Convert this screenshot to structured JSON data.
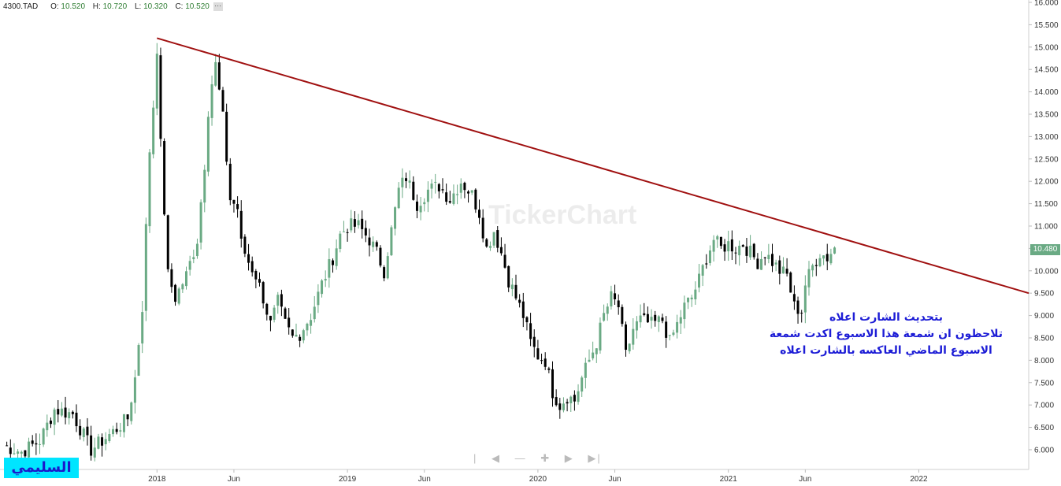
{
  "header": {
    "symbol": "4300.TAD",
    "open_label": "O:",
    "open": "10.520",
    "high_label": "H:",
    "high": "10.720",
    "low_label": "L:",
    "low": "10.320",
    "close_label": "C:",
    "close": "10.520"
  },
  "last_price": "10.480",
  "annotation": [
    "بتحديث الشارت اعلاه",
    "تلاحظون ان شمعة هذا الاسبوع اكدت شمعة",
    "الاسبوع الماضي العاكسه بالشارت اعلاه"
  ],
  "brand_label": "السليمي",
  "watermark": "TickerChart",
  "colors": {
    "up": "#6aaa84",
    "down": "#000000",
    "trendline": "#a01010",
    "annotation": "#1d1dd6",
    "brand_bg": "#00e5ff"
  },
  "navigation_icons": [
    "separator-icon",
    "left-arrow-icon",
    "zoom-out-icon",
    "zoom-in-icon",
    "right-arrow-icon",
    "end-icon"
  ],
  "chart_data": {
    "type": "candlestick",
    "interval": "weekly",
    "ylim": [
      5.7,
      16.0
    ],
    "y_ticks": [
      "6.000",
      "6.500",
      "7.000",
      "7.500",
      "8.000",
      "8.500",
      "9.000",
      "9.500",
      "10.000",
      "10.500",
      "11.000",
      "11.500",
      "12.000",
      "12.500",
      "13.000",
      "13.500",
      "14.000",
      "14.500",
      "15.000",
      "15.500",
      "16.000"
    ],
    "x_ticks": [
      {
        "label": "2018",
        "week": 42
      },
      {
        "label": "Jun",
        "week": 63
      },
      {
        "label": "2019",
        "week": 94
      },
      {
        "label": "Jun",
        "week": 115
      },
      {
        "label": "2020",
        "week": 146
      },
      {
        "label": "Jun",
        "week": 167
      },
      {
        "label": "2021",
        "week": 198
      },
      {
        "label": "Jun",
        "week": 219
      },
      {
        "label": "2022",
        "week": 250
      }
    ],
    "x_range_weeks": [
      0,
      280
    ],
    "close_points": [
      [
        0,
        6.1
      ],
      [
        5,
        5.95
      ],
      [
        10,
        6.2
      ],
      [
        14,
        6.9
      ],
      [
        19,
        6.8
      ],
      [
        24,
        6.0
      ],
      [
        30,
        6.4
      ],
      [
        34,
        6.7
      ],
      [
        36,
        7.6
      ],
      [
        38,
        9.2
      ],
      [
        40,
        12.7
      ],
      [
        41,
        13.7
      ],
      [
        42,
        15.0
      ],
      [
        43,
        12.8
      ],
      [
        45,
        9.9
      ],
      [
        47,
        9.4
      ],
      [
        50,
        9.9
      ],
      [
        53,
        10.7
      ],
      [
        55,
        12.4
      ],
      [
        56,
        13.6
      ],
      [
        57,
        14.2
      ],
      [
        58,
        14.6
      ],
      [
        60,
        13.4
      ],
      [
        62,
        11.6
      ],
      [
        64,
        11.4
      ],
      [
        65,
        10.6
      ],
      [
        67,
        10.2
      ],
      [
        69,
        9.9
      ],
      [
        71,
        9.4
      ],
      [
        73,
        8.8
      ],
      [
        75,
        9.3
      ],
      [
        77,
        8.8
      ],
      [
        79,
        8.5
      ],
      [
        81,
        8.6
      ],
      [
        84,
        9.0
      ],
      [
        87,
        9.7
      ],
      [
        90,
        10.3
      ],
      [
        92,
        10.8
      ],
      [
        94,
        11.0
      ],
      [
        97,
        11.0
      ],
      [
        100,
        10.7
      ],
      [
        102,
        10.4
      ],
      [
        104,
        10.0
      ],
      [
        106,
        10.9
      ],
      [
        108,
        11.8
      ],
      [
        110,
        12.1
      ],
      [
        113,
        11.5
      ],
      [
        116,
        11.8
      ],
      [
        119,
        11.9
      ],
      [
        122,
        11.6
      ],
      [
        125,
        12.0
      ],
      [
        128,
        11.7
      ],
      [
        130,
        11.3
      ],
      [
        132,
        10.5
      ],
      [
        134,
        10.9
      ],
      [
        136,
        10.4
      ],
      [
        138,
        9.8
      ],
      [
        140,
        9.4
      ],
      [
        142,
        9.0
      ],
      [
        144,
        8.4
      ],
      [
        146,
        8.1
      ],
      [
        148,
        8.0
      ],
      [
        150,
        7.3
      ],
      [
        152,
        7.0
      ],
      [
        154,
        7.2
      ],
      [
        156,
        7.1
      ],
      [
        158,
        7.6
      ],
      [
        160,
        8.0
      ],
      [
        162,
        8.4
      ],
      [
        164,
        9.0
      ],
      [
        166,
        9.4
      ],
      [
        168,
        9.2
      ],
      [
        170,
        8.1
      ],
      [
        172,
        8.7
      ],
      [
        174,
        8.9
      ],
      [
        177,
        8.8
      ],
      [
        180,
        8.9
      ],
      [
        182,
        8.4
      ],
      [
        184,
        8.8
      ],
      [
        186,
        9.2
      ],
      [
        188,
        9.4
      ],
      [
        190,
        9.8
      ],
      [
        192,
        10.3
      ],
      [
        194,
        10.7
      ],
      [
        196,
        10.5
      ],
      [
        198,
        10.6
      ],
      [
        200,
        10.5
      ],
      [
        202,
        10.6
      ],
      [
        204,
        10.4
      ],
      [
        206,
        10.2
      ],
      [
        208,
        10.4
      ],
      [
        210,
        10.2
      ],
      [
        212,
        10.0
      ],
      [
        214,
        9.9
      ],
      [
        216,
        9.2
      ],
      [
        218,
        9.1
      ],
      [
        219,
        9.7
      ],
      [
        221,
        10.1
      ],
      [
        223,
        10.4
      ],
      [
        225,
        10.3
      ],
      [
        227,
        10.52
      ]
    ],
    "trendline": {
      "start": {
        "week": 42,
        "value": 15.2
      },
      "end": {
        "week": 280,
        "value": 9.5
      }
    }
  }
}
